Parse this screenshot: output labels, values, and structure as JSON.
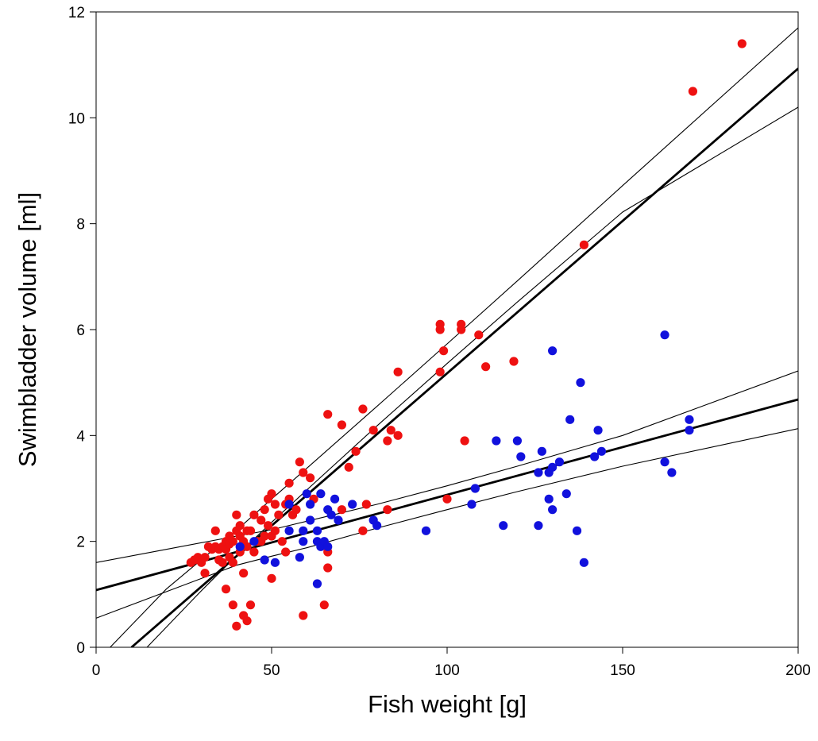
{
  "chart_data": {
    "type": "scatter",
    "title": "",
    "xlabel": "Fish weight [g]",
    "ylabel": "Swimbladder volume [ml]",
    "xlim": [
      0,
      200
    ],
    "ylim": [
      0,
      12
    ],
    "xticks": [
      "0",
      "50",
      "100",
      "150",
      "200"
    ],
    "yticks": [
      "0",
      "2",
      "4",
      "6",
      "8",
      "10",
      "12"
    ],
    "grid": false,
    "legend": "none",
    "colors": {
      "red": "#ee1111",
      "blue": "#1111dd",
      "line": "#000000"
    },
    "series": [
      {
        "color": "red",
        "points": [
          [
            27,
            1.6
          ],
          [
            28,
            1.65
          ],
          [
            29,
            1.7
          ],
          [
            30,
            1.6
          ],
          [
            31,
            1.7
          ],
          [
            31,
            1.4
          ],
          [
            32,
            1.9
          ],
          [
            33,
            1.85
          ],
          [
            34,
            2.2
          ],
          [
            34,
            1.9
          ],
          [
            35,
            1.85
          ],
          [
            35,
            1.65
          ],
          [
            36,
            1.6
          ],
          [
            36,
            1.9
          ],
          [
            37,
            2.0
          ],
          [
            37,
            1.85
          ],
          [
            37,
            1.1
          ],
          [
            38,
            2.1
          ],
          [
            38,
            1.7
          ],
          [
            38,
            1.95
          ],
          [
            39,
            2.0
          ],
          [
            39,
            1.6
          ],
          [
            39,
            0.8
          ],
          [
            40,
            0.4
          ],
          [
            40,
            2.5
          ],
          [
            40,
            2.2
          ],
          [
            41,
            1.8
          ],
          [
            41,
            2.3
          ],
          [
            41,
            2.1
          ],
          [
            42,
            1.4
          ],
          [
            42,
            0.6
          ],
          [
            42,
            2.0
          ],
          [
            43,
            1.9
          ],
          [
            43,
            2.2
          ],
          [
            43,
            0.5
          ],
          [
            44,
            0.8
          ],
          [
            44,
            2.2
          ],
          [
            45,
            2.5
          ],
          [
            45,
            1.8
          ],
          [
            46,
            2.0
          ],
          [
            47,
            2.4
          ],
          [
            47,
            2.0
          ],
          [
            48,
            2.6
          ],
          [
            48,
            2.1
          ],
          [
            49,
            2.8
          ],
          [
            49,
            2.3
          ],
          [
            50,
            2.9
          ],
          [
            50,
            1.3
          ],
          [
            50,
            2.1
          ],
          [
            51,
            2.7
          ],
          [
            51,
            2.2
          ],
          [
            52,
            2.5
          ],
          [
            53,
            2.0
          ],
          [
            54,
            2.7
          ],
          [
            54,
            1.8
          ],
          [
            55,
            3.1
          ],
          [
            55,
            2.8
          ],
          [
            56,
            2.5
          ],
          [
            57,
            2.6
          ],
          [
            58,
            3.5
          ],
          [
            59,
            0.6
          ],
          [
            59,
            3.3
          ],
          [
            61,
            3.2
          ],
          [
            62,
            2.8
          ],
          [
            65,
            0.8
          ],
          [
            66,
            1.5
          ],
          [
            66,
            1.8
          ],
          [
            66,
            4.4
          ],
          [
            70,
            4.2
          ],
          [
            70,
            2.6
          ],
          [
            72,
            3.4
          ],
          [
            74,
            3.7
          ],
          [
            76,
            4.5
          ],
          [
            76,
            2.2
          ],
          [
            77,
            2.7
          ],
          [
            79,
            4.1
          ],
          [
            83,
            3.9
          ],
          [
            83,
            2.6
          ],
          [
            84,
            4.1
          ],
          [
            86,
            5.2
          ],
          [
            86,
            4.0
          ],
          [
            98,
            6.1
          ],
          [
            98,
            6.0
          ],
          [
            98,
            5.2
          ],
          [
            99,
            5.6
          ],
          [
            100,
            2.8
          ],
          [
            104,
            6.1
          ],
          [
            104,
            6.0
          ],
          [
            105,
            3.9
          ],
          [
            109,
            5.9
          ],
          [
            111,
            5.3
          ],
          [
            119,
            5.4
          ],
          [
            139,
            7.6
          ],
          [
            170,
            10.5
          ],
          [
            184,
            11.4
          ]
        ]
      },
      {
        "color": "blue",
        "points": [
          [
            41,
            1.9
          ],
          [
            45,
            2.0
          ],
          [
            48,
            1.65
          ],
          [
            51,
            1.6
          ],
          [
            55,
            2.7
          ],
          [
            55,
            2.2
          ],
          [
            58,
            1.7
          ],
          [
            59,
            2.0
          ],
          [
            59,
            2.2
          ],
          [
            60,
            2.9
          ],
          [
            61,
            2.4
          ],
          [
            61,
            2.7
          ],
          [
            63,
            1.2
          ],
          [
            63,
            2.2
          ],
          [
            63,
            2.0
          ],
          [
            64,
            1.9
          ],
          [
            64,
            2.9
          ],
          [
            65,
            2.0
          ],
          [
            66,
            2.6
          ],
          [
            66,
            1.9
          ],
          [
            67,
            2.5
          ],
          [
            68,
            2.8
          ],
          [
            69,
            2.4
          ],
          [
            73,
            2.7
          ],
          [
            79,
            2.4
          ],
          [
            80,
            2.3
          ],
          [
            94,
            2.2
          ],
          [
            107,
            2.7
          ],
          [
            108,
            3.0
          ],
          [
            114,
            3.9
          ],
          [
            116,
            2.3
          ],
          [
            120,
            3.9
          ],
          [
            121,
            3.6
          ],
          [
            126,
            2.3
          ],
          [
            126,
            3.3
          ],
          [
            127,
            3.7
          ],
          [
            129,
            3.3
          ],
          [
            129,
            2.8
          ],
          [
            130,
            3.4
          ],
          [
            130,
            2.6
          ],
          [
            130,
            5.6
          ],
          [
            132,
            3.5
          ],
          [
            134,
            2.9
          ],
          [
            135,
            4.3
          ],
          [
            137,
            2.2
          ],
          [
            138,
            5.0
          ],
          [
            139,
            1.6
          ],
          [
            142,
            3.6
          ],
          [
            143,
            4.1
          ],
          [
            144,
            3.7
          ],
          [
            162,
            5.9
          ],
          [
            162,
            3.5
          ],
          [
            164,
            3.3
          ],
          [
            169,
            4.1
          ],
          [
            169,
            4.3
          ]
        ]
      }
    ],
    "regression_lines": [
      {
        "for": "red",
        "fit": [
          [
            10.1,
            0
          ],
          [
            200,
            10.93
          ]
        ],
        "ci_upper": [
          [
            4,
            0
          ],
          [
            20,
            1.1
          ],
          [
            40,
            2.21
          ],
          [
            50,
            2.8
          ],
          [
            60,
            3.38
          ],
          [
            80,
            4.55
          ],
          [
            100,
            5.73
          ],
          [
            120,
            6.92
          ],
          [
            150,
            8.72
          ],
          [
            200,
            11.7
          ]
        ],
        "ci_lower": [
          [
            14.5,
            0
          ],
          [
            30,
            1.07
          ],
          [
            40,
            1.73
          ],
          [
            50,
            2.36
          ],
          [
            60,
            2.97
          ],
          [
            80,
            4.18
          ],
          [
            100,
            5.36
          ],
          [
            120,
            6.52
          ],
          [
            150,
            8.22
          ],
          [
            200,
            10.2
          ]
        ]
      },
      {
        "for": "blue",
        "fit": [
          [
            0,
            1.08
          ],
          [
            200,
            4.68
          ]
        ],
        "ci_upper": [
          [
            0,
            1.6
          ],
          [
            20,
            1.85
          ],
          [
            40,
            2.1
          ],
          [
            50,
            2.22
          ],
          [
            60,
            2.38
          ],
          [
            80,
            2.7
          ],
          [
            100,
            3.05
          ],
          [
            120,
            3.42
          ],
          [
            150,
            4.0
          ],
          [
            200,
            5.22
          ]
        ],
        "ci_lower": [
          [
            0,
            0.55
          ],
          [
            20,
            1.05
          ],
          [
            40,
            1.55
          ],
          [
            50,
            1.72
          ],
          [
            60,
            1.88
          ],
          [
            80,
            2.25
          ],
          [
            100,
            2.6
          ],
          [
            120,
            2.94
          ],
          [
            150,
            3.42
          ],
          [
            200,
            4.13
          ]
        ]
      }
    ]
  }
}
